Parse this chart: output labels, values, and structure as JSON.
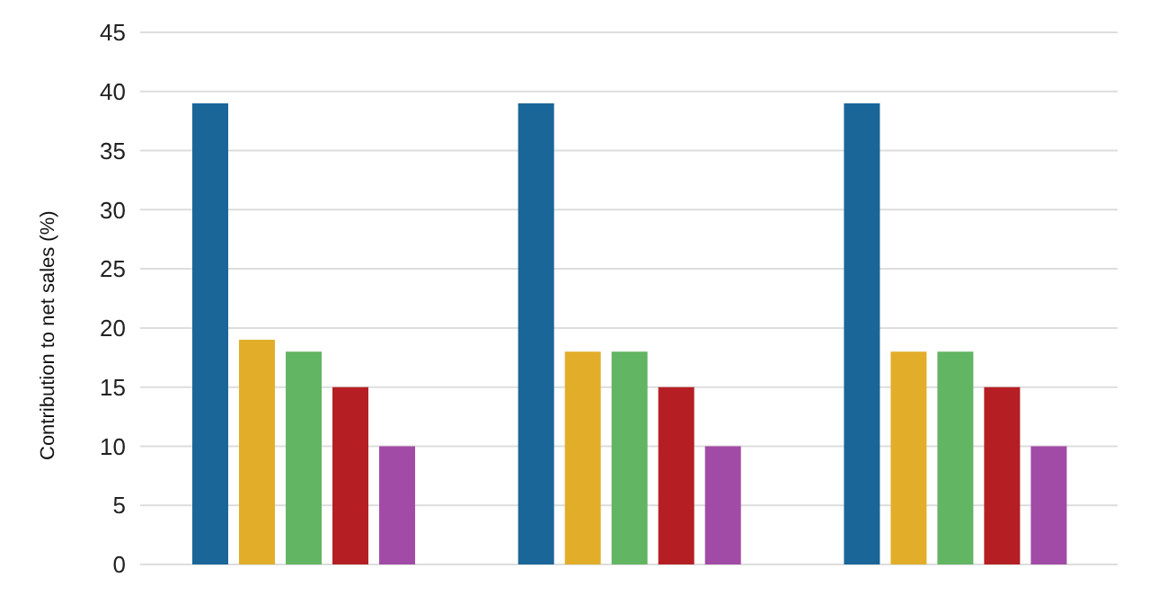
{
  "chart_data": {
    "type": "bar",
    "ylabel": "Contribution to net sales (%)",
    "categories": [
      null,
      null,
      null
    ],
    "series": [
      {
        "color": "#1a6699",
        "values": [
          39,
          39,
          39
        ]
      },
      {
        "color": "#e2ae2a",
        "values": [
          19,
          18,
          18
        ]
      },
      {
        "color": "#62b562",
        "values": [
          18,
          18,
          18
        ]
      },
      {
        "color": "#b51f24",
        "values": [
          15,
          15,
          15
        ]
      },
      {
        "color": "#a14ba6",
        "values": [
          10,
          10,
          10
        ]
      }
    ],
    "ylim": [
      0,
      45
    ],
    "yticks": [
      0,
      5,
      10,
      15,
      20,
      25,
      30,
      35,
      40,
      45
    ],
    "grid": "y"
  }
}
